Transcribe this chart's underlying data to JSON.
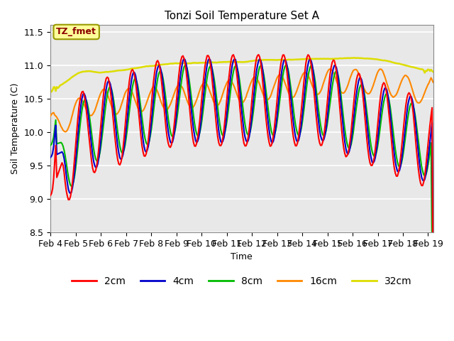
{
  "title": "Tonzi Soil Temperature Set A",
  "xlabel": "Time",
  "ylabel": "Soil Temperature (C)",
  "annotation": "TZ_fmet",
  "annotation_color": "#8B0000",
  "annotation_bg": "#FFFF99",
  "annotation_border": "#999900",
  "ylim": [
    8.5,
    11.6
  ],
  "xlim_days": 15.2,
  "x_ticks_labels": [
    "Feb 4",
    "Feb 5",
    "Feb 6",
    "Feb 7",
    "Feb 8",
    "Feb 9",
    "Feb 10",
    "Feb 11",
    "Feb 12",
    "Feb 13",
    "Feb 14",
    "Feb 15",
    "Feb 16",
    "Feb 17",
    "Feb 18",
    "Feb 19"
  ],
  "colors": {
    "2cm": "#FF0000",
    "4cm": "#0000CC",
    "8cm": "#00BB00",
    "16cm": "#FF8800",
    "32cm": "#DDDD00"
  },
  "background_color": "#E8E8E8",
  "grid_color": "#FFFFFF",
  "figsize": [
    6.4,
    4.8
  ],
  "dpi": 100
}
